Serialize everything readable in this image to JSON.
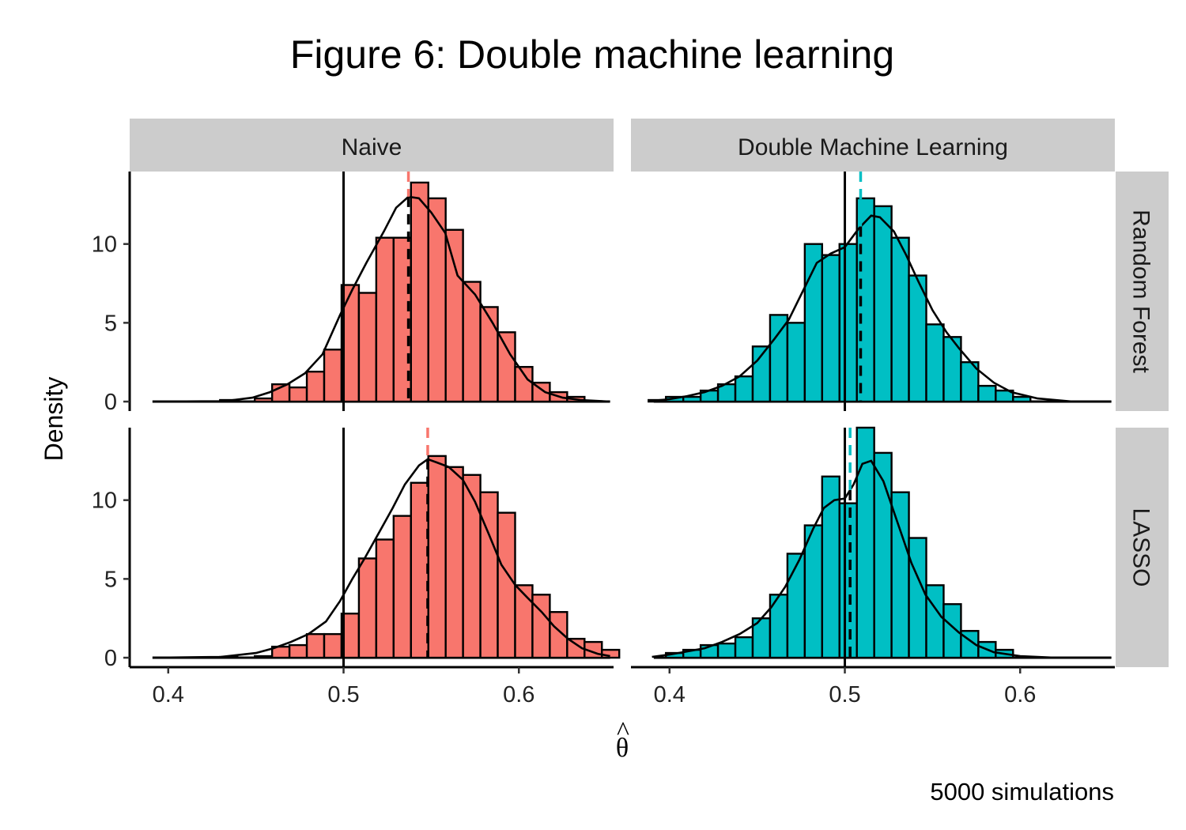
{
  "chart_data": {
    "type": "bar",
    "subtype": "faceted-histogram-with-density",
    "title": "Figure 6: Double machine learning",
    "xlabel": "θ",
    "xlabel_hat": "^",
    "ylabel": "Density",
    "caption": "5000 simulations",
    "xlim": [
      0.378,
      0.654
    ],
    "ylim": [
      -0.6,
      14.6
    ],
    "x_ticks": [
      0.4,
      0.5,
      0.6
    ],
    "x_tick_labels": [
      "0.4",
      "0.5",
      "0.6"
    ],
    "y_ticks": [
      0,
      5,
      10
    ],
    "y_tick_labels": [
      "0",
      "5",
      "10"
    ],
    "bin_width": 0.0099,
    "true_value": 0.5,
    "legend": "none",
    "grid": false,
    "colors": {
      "Naive": "#F8766D",
      "Double Machine Learning": "#00BFC4"
    },
    "columns": [
      "Naive",
      "Double Machine Learning"
    ],
    "rows": [
      "Random Forest",
      "LASSO"
    ],
    "panels": [
      {
        "column": "Naive",
        "row": "Random Forest",
        "mean": 0.537,
        "bins": [
          [
            0.4345,
            0.1
          ],
          [
            0.4444,
            0.0
          ],
          [
            0.4543,
            0.2
          ],
          [
            0.4642,
            1.1
          ],
          [
            0.4741,
            0.9
          ],
          [
            0.484,
            1.9
          ],
          [
            0.4939,
            3.3
          ],
          [
            0.5038,
            7.4
          ],
          [
            0.5137,
            6.9
          ],
          [
            0.5236,
            10.4
          ],
          [
            0.5335,
            10.4
          ],
          [
            0.5434,
            13.9
          ],
          [
            0.5533,
            12.9
          ],
          [
            0.5632,
            10.9
          ],
          [
            0.5731,
            7.6
          ],
          [
            0.583,
            6.0
          ],
          [
            0.5929,
            4.4
          ],
          [
            0.6028,
            2.2
          ],
          [
            0.6127,
            1.2
          ],
          [
            0.6226,
            0.6
          ],
          [
            0.6325,
            0.3
          ]
        ],
        "density": [
          [
            0.392,
            0.0
          ],
          [
            0.432,
            0.02
          ],
          [
            0.448,
            0.25
          ],
          [
            0.458,
            0.6
          ],
          [
            0.468,
            1.1
          ],
          [
            0.478,
            1.8
          ],
          [
            0.488,
            3.0
          ],
          [
            0.498,
            5.5
          ],
          [
            0.505,
            7.1
          ],
          [
            0.513,
            8.8
          ],
          [
            0.523,
            10.8
          ],
          [
            0.53,
            12.3
          ],
          [
            0.537,
            13.0
          ],
          [
            0.543,
            12.9
          ],
          [
            0.55,
            12.0
          ],
          [
            0.558,
            10.7
          ],
          [
            0.565,
            8.0
          ],
          [
            0.575,
            6.8
          ],
          [
            0.585,
            5.0
          ],
          [
            0.595,
            3.0
          ],
          [
            0.605,
            1.4
          ],
          [
            0.615,
            0.6
          ],
          [
            0.625,
            0.25
          ],
          [
            0.635,
            0.1
          ],
          [
            0.652,
            0.0
          ]
        ]
      },
      {
        "column": "Double Machine Learning",
        "row": "Random Forest",
        "mean": 0.509,
        "bins": [
          [
            0.393,
            0.1
          ],
          [
            0.4029,
            0.3
          ],
          [
            0.4128,
            0.3
          ],
          [
            0.4227,
            0.7
          ],
          [
            0.4326,
            1.1
          ],
          [
            0.4425,
            1.6
          ],
          [
            0.4524,
            3.5
          ],
          [
            0.4623,
            5.5
          ],
          [
            0.4722,
            5.0
          ],
          [
            0.4821,
            10.0
          ],
          [
            0.492,
            9.3
          ],
          [
            0.5019,
            10.0
          ],
          [
            0.5118,
            12.9
          ],
          [
            0.5217,
            12.4
          ],
          [
            0.5316,
            10.4
          ],
          [
            0.5415,
            8.0
          ],
          [
            0.5514,
            4.9
          ],
          [
            0.5613,
            4.1
          ],
          [
            0.5712,
            2.5
          ],
          [
            0.5811,
            1.0
          ],
          [
            0.591,
            0.7
          ],
          [
            0.6009,
            0.3
          ]
        ],
        "density": [
          [
            0.39,
            0.05
          ],
          [
            0.4,
            0.15
          ],
          [
            0.41,
            0.35
          ],
          [
            0.42,
            0.6
          ],
          [
            0.43,
            1.0
          ],
          [
            0.44,
            1.6
          ],
          [
            0.45,
            2.6
          ],
          [
            0.46,
            4.0
          ],
          [
            0.468,
            5.2
          ],
          [
            0.476,
            7.0
          ],
          [
            0.484,
            8.8
          ],
          [
            0.492,
            9.4
          ],
          [
            0.5,
            9.8
          ],
          [
            0.508,
            11.0
          ],
          [
            0.515,
            11.8
          ],
          [
            0.52,
            11.7
          ],
          [
            0.528,
            10.8
          ],
          [
            0.535,
            9.3
          ],
          [
            0.542,
            7.6
          ],
          [
            0.55,
            5.8
          ],
          [
            0.558,
            4.4
          ],
          [
            0.565,
            3.4
          ],
          [
            0.575,
            2.1
          ],
          [
            0.585,
            1.2
          ],
          [
            0.595,
            0.6
          ],
          [
            0.61,
            0.2
          ],
          [
            0.63,
            0.0
          ],
          [
            0.652,
            0.0
          ]
        ]
      },
      {
        "column": "Naive",
        "row": "LASSO",
        "mean": 0.548,
        "bins": [
          [
            0.4345,
            0.05
          ],
          [
            0.4444,
            0.0
          ],
          [
            0.4543,
            0.1
          ],
          [
            0.4642,
            0.7
          ],
          [
            0.4741,
            0.8
          ],
          [
            0.484,
            1.5
          ],
          [
            0.4939,
            1.5
          ],
          [
            0.5038,
            2.8
          ],
          [
            0.5137,
            6.3
          ],
          [
            0.5236,
            7.5
          ],
          [
            0.5335,
            9.0
          ],
          [
            0.5434,
            11.1
          ],
          [
            0.5533,
            12.8
          ],
          [
            0.5632,
            12.1
          ],
          [
            0.5731,
            11.6
          ],
          [
            0.583,
            10.5
          ],
          [
            0.5929,
            9.2
          ],
          [
            0.6028,
            4.6
          ],
          [
            0.6127,
            4.0
          ],
          [
            0.6226,
            2.9
          ],
          [
            0.6325,
            1.2
          ],
          [
            0.6424,
            1.0
          ],
          [
            0.6523,
            0.5
          ]
        ],
        "density": [
          [
            0.392,
            0.0
          ],
          [
            0.43,
            0.05
          ],
          [
            0.45,
            0.3
          ],
          [
            0.46,
            0.6
          ],
          [
            0.47,
            1.0
          ],
          [
            0.48,
            1.5
          ],
          [
            0.49,
            2.3
          ],
          [
            0.498,
            3.6
          ],
          [
            0.505,
            5.0
          ],
          [
            0.512,
            6.3
          ],
          [
            0.52,
            7.9
          ],
          [
            0.528,
            9.5
          ],
          [
            0.535,
            11.0
          ],
          [
            0.543,
            12.2
          ],
          [
            0.548,
            12.6
          ],
          [
            0.553,
            12.4
          ],
          [
            0.56,
            12.1
          ],
          [
            0.568,
            11.3
          ],
          [
            0.575,
            9.9
          ],
          [
            0.583,
            7.8
          ],
          [
            0.59,
            5.9
          ],
          [
            0.598,
            4.6
          ],
          [
            0.605,
            3.8
          ],
          [
            0.613,
            2.9
          ],
          [
            0.62,
            2.0
          ],
          [
            0.628,
            1.2
          ],
          [
            0.636,
            0.6
          ],
          [
            0.645,
            0.25
          ],
          [
            0.652,
            0.1
          ]
        ]
      },
      {
        "column": "Double Machine Learning",
        "row": "LASSO",
        "mean": 0.503,
        "bins": [
          [
            0.4029,
            0.3
          ],
          [
            0.4128,
            0.5
          ],
          [
            0.4227,
            0.8
          ],
          [
            0.4326,
            0.9
          ],
          [
            0.4425,
            1.3
          ],
          [
            0.4524,
            2.5
          ],
          [
            0.4623,
            4.0
          ],
          [
            0.4722,
            6.6
          ],
          [
            0.4821,
            8.4
          ],
          [
            0.492,
            11.5
          ],
          [
            0.5019,
            9.8
          ],
          [
            0.5118,
            14.6
          ],
          [
            0.5217,
            13.0
          ],
          [
            0.5316,
            10.5
          ],
          [
            0.5415,
            7.6
          ],
          [
            0.5514,
            4.6
          ],
          [
            0.5613,
            3.4
          ],
          [
            0.5712,
            1.7
          ],
          [
            0.5811,
            1.0
          ],
          [
            0.591,
            0.5
          ]
        ],
        "density": [
          [
            0.39,
            0.05
          ],
          [
            0.4,
            0.2
          ],
          [
            0.41,
            0.4
          ],
          [
            0.42,
            0.6
          ],
          [
            0.43,
            1.0
          ],
          [
            0.44,
            1.5
          ],
          [
            0.45,
            2.2
          ],
          [
            0.458,
            3.2
          ],
          [
            0.466,
            4.5
          ],
          [
            0.474,
            6.2
          ],
          [
            0.482,
            8.2
          ],
          [
            0.488,
            9.5
          ],
          [
            0.494,
            10.0
          ],
          [
            0.5,
            10.1
          ],
          [
            0.505,
            11.0
          ],
          [
            0.51,
            12.3
          ],
          [
            0.515,
            12.5
          ],
          [
            0.522,
            11.2
          ],
          [
            0.53,
            8.6
          ],
          [
            0.538,
            6.0
          ],
          [
            0.546,
            4.0
          ],
          [
            0.555,
            2.6
          ],
          [
            0.565,
            1.6
          ],
          [
            0.575,
            0.8
          ],
          [
            0.585,
            0.35
          ],
          [
            0.6,
            0.1
          ],
          [
            0.62,
            0.0
          ],
          [
            0.652,
            0.0
          ]
        ]
      }
    ]
  }
}
